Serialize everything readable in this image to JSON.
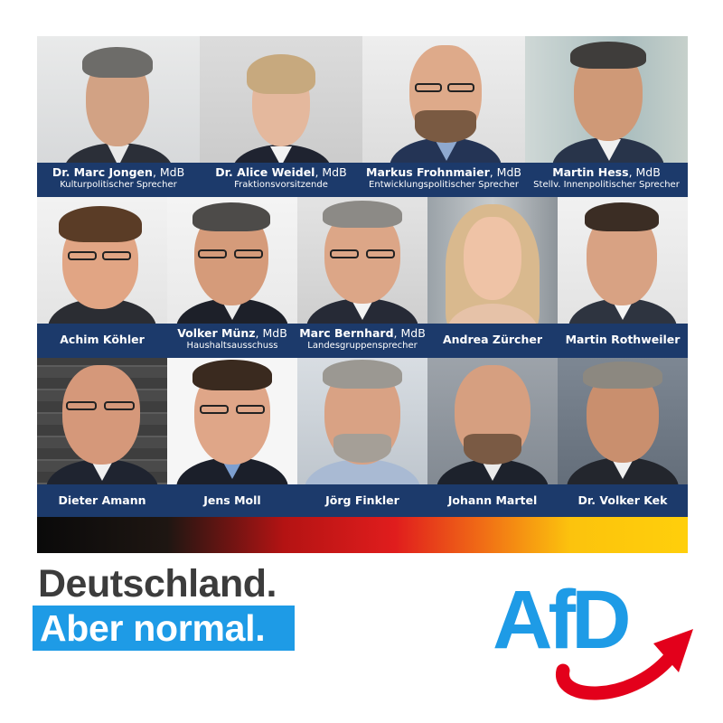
{
  "people": [
    {
      "name": "Dr. Marc Jongen",
      "suffix": ", MdB",
      "role": "Kulturpolitischer Sprecher"
    },
    {
      "name": "Dr. Alice Weidel",
      "suffix": ", MdB",
      "role": "Fraktionsvorsitzende"
    },
    {
      "name": "Markus Frohnmaier",
      "suffix": ", MdB",
      "role": "Entwicklungspolitischer Sprecher"
    },
    {
      "name": "Martin Hess",
      "suffix": ", MdB",
      "role": "Stellv. Innenpolitischer Sprecher"
    },
    {
      "name": "Achim Köhler"
    },
    {
      "name": "Volker Münz",
      "suffix": ", MdB",
      "role": "Haushaltsausschuss"
    },
    {
      "name": "Marc Bernhard",
      "suffix": ", MdB",
      "role": "Landesgruppensprecher"
    },
    {
      "name": "Andrea Zürcher"
    },
    {
      "name": "Martin Rothweiler"
    },
    {
      "name": "Dieter Amann"
    },
    {
      "name": "Jens Moll"
    },
    {
      "name": "Jörg Finkler"
    },
    {
      "name": "Johann Martel"
    },
    {
      "name": "Dr. Volker Kek"
    }
  ],
  "slogan": {
    "line1": "Deutschland.",
    "line2": "Aber normal."
  },
  "logo": {
    "text": "AfD"
  },
  "colors": {
    "namebar": "#1c3a6b",
    "brand_blue": "#1e9be6",
    "brand_red": "#e3001b",
    "slogan_gray": "#3c3c3c"
  }
}
